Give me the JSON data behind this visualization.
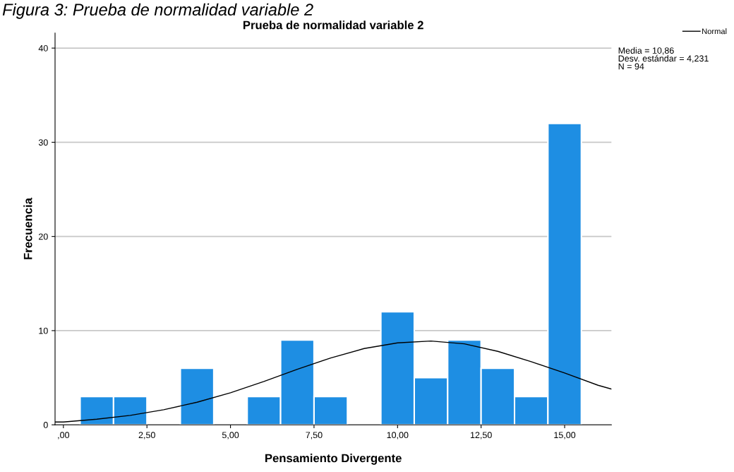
{
  "chart_data": {
    "type": "histogram",
    "title": "Prueba de normalidad variable 2",
    "xlabel": "Pensamiento Divergente",
    "ylabel": "Frecuencia",
    "annotations": [
      "Figura 3: Prueba de normalidad variable 2",
      "Media = 10,86\nDesv. estándar = 4,231\nN = 94"
    ],
    "bins": [
      0.5,
      1.5,
      2.5,
      3.5,
      4.5,
      5.5,
      6.5,
      7.5,
      8.5,
      9.5,
      10.5,
      11.5,
      12.5,
      13.5,
      14.5,
      15.5
    ],
    "series": [
      {
        "type": "histogram",
        "color": "#1e8ee3",
        "values": [
          3,
          3,
          0,
          6,
          0,
          3,
          9,
          3,
          0,
          12,
          5,
          9,
          6,
          3,
          32
        ]
      },
      {
        "type": "line",
        "name": "Normal",
        "color": "#000000",
        "x": [
          -0.25,
          0,
          1,
          2,
          3,
          4,
          5,
          6,
          7,
          8,
          9,
          10,
          11,
          12,
          13,
          14,
          15,
          16,
          16.4
        ],
        "values": [
          0.3,
          0.3,
          0.6,
          1.0,
          1.6,
          2.4,
          3.4,
          4.6,
          5.9,
          7.1,
          8.1,
          8.7,
          8.9,
          8.6,
          7.8,
          6.7,
          5.5,
          4.2,
          3.8
        ]
      }
    ],
    "xlim": [
      -0.25,
      16.4
    ],
    "ylim": [
      0,
      41.6
    ],
    "xticks": [
      {
        "value": 0,
        "label": ",00"
      },
      {
        "value": 2.5,
        "label": "2,50"
      },
      {
        "value": 5,
        "label": "5,00"
      },
      {
        "value": 7.5,
        "label": "7,50"
      },
      {
        "value": 10,
        "label": "10,00"
      },
      {
        "value": 12.5,
        "label": "12,50"
      },
      {
        "value": 15,
        "label": "15,00"
      }
    ],
    "yticks": [
      0,
      10,
      20,
      30,
      40
    ],
    "grid": "y",
    "legend": "top right",
    "marker": "none",
    "line_style": "solid"
  }
}
